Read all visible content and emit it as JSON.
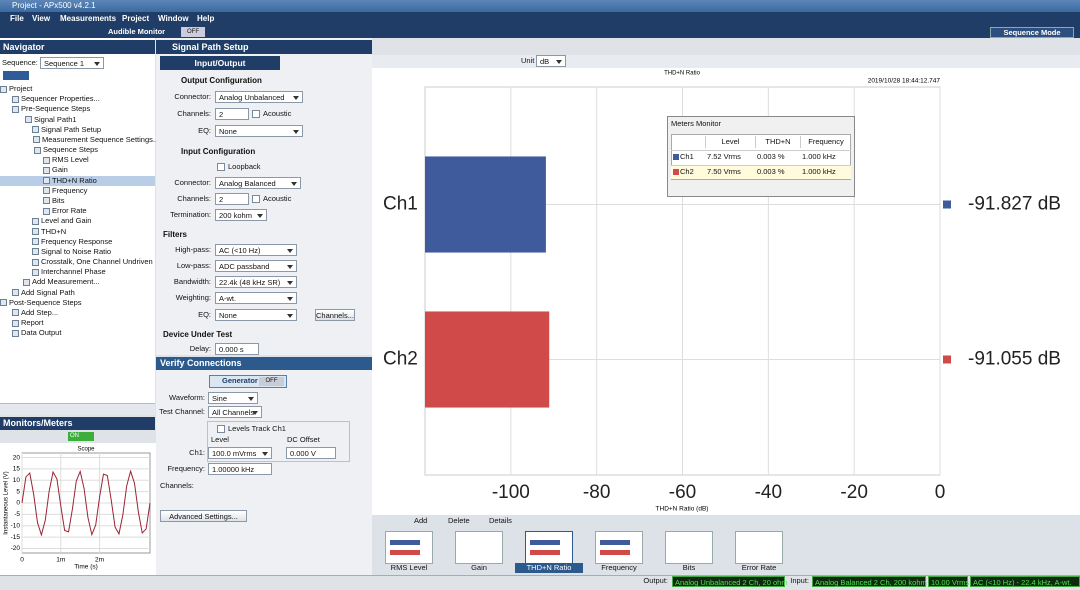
{
  "window": {
    "title": "Project - APx500 v4.2.1",
    "mode": "Sequence Mode"
  },
  "menu": [
    "File",
    "View",
    "Measurements",
    "Project",
    "Window",
    "Help"
  ],
  "toolbar": {
    "audible_monitor": "Audible Monitor",
    "state": "OFF"
  },
  "navigator": {
    "title": "Navigator",
    "sequence_label": "Sequence:",
    "sequence": "Sequence 1",
    "tree": [
      "Project",
      "Sequencer Properties...",
      "Pre-Sequence Steps",
      "Signal Path1",
      "Signal Path Setup",
      "Measurement Sequence Settings...",
      "Sequence Steps",
      "RMS Level",
      "Gain",
      "THD+N Ratio",
      "Frequency",
      "Bits",
      "Error Rate",
      "Level and Gain",
      "THD+N",
      "Frequency Response",
      "Signal to Noise Ratio",
      "Crosstalk, One Channel Undriven",
      "Interchannel Phase",
      "Add Measurement...",
      "Add Signal Path",
      "Post-Sequence Steps",
      "Add Step...",
      "Report",
      "Data Output"
    ]
  },
  "monitors": {
    "title": "Monitors/Meters",
    "state": "ON"
  },
  "signal_path": {
    "title": "Signal Path Setup",
    "tab": "Input/Output",
    "output": {
      "title": "Output Configuration",
      "connector_label": "Connector:",
      "connector": "Analog Unbalanced",
      "channels_label": "Channels:",
      "channels": "2",
      "acoustic": "Acoustic",
      "eq_label": "EQ:",
      "eq": "None"
    },
    "input": {
      "title": "Input Configuration",
      "loopback": "Loopback",
      "connector_label": "Connector:",
      "connector": "Analog Balanced",
      "channels_label": "Channels:",
      "channels": "2",
      "acoustic": "Acoustic",
      "termination_label": "Termination:",
      "termination": "200 kohm"
    },
    "filters": {
      "title": "Filters",
      "highpass_label": "High-pass:",
      "highpass": "AC (<10 Hz)",
      "lowpass_label": "Low-pass:",
      "lowpass": "ADC passband",
      "bandwidth_label": "Bandwidth:",
      "bandwidth": "22.4k (48 kHz SR)",
      "weighting_label": "Weighting:",
      "weighting": "A-wt.",
      "eq_label": "EQ:",
      "eq": "None",
      "channels_button": "Channels..."
    },
    "dut": {
      "title": "Device Under Test",
      "delay_label": "Delay:",
      "delay": "0.000 s"
    }
  },
  "verify": {
    "title": "Verify Connections",
    "generator": "Generator",
    "generator_state": "OFF",
    "waveform_label": "Waveform:",
    "waveform": "Sine",
    "test_channel_label": "Test Channel:",
    "test_channel": "All Channels",
    "levels_track": "Levels Track Ch1",
    "level_header": "Level",
    "dc_offset_header": "DC Offset",
    "ch1_label": "Ch1:",
    "ch1_level": "100.0 mVrms",
    "ch1_dc_offset": "0.000 V",
    "frequency_label": "Frequency:",
    "frequency": "1.00000 kHz",
    "channels_label": "Channels:",
    "advanced": "Advanced Settings..."
  },
  "graph_toolbar": {
    "unit_label": "Unit",
    "unit": "dB"
  },
  "meters_monitor": {
    "title": "Meters Monitor",
    "headers": [
      "Level",
      "THD+N",
      "Frequency"
    ],
    "rows": [
      [
        "Ch1",
        "7.52 Vrms",
        "0.003 %",
        "1.000 kHz"
      ],
      [
        "Ch2",
        "7.50 Vrms",
        "0.003 %",
        "1.000 kHz"
      ]
    ]
  },
  "measurements_bar": {
    "add": "Add",
    "delete": "Delete",
    "details": "Details",
    "tabs": [
      "RMS Level",
      "Gain",
      "THD+N Ratio",
      "Frequency",
      "Bits",
      "Error Rate"
    ]
  },
  "status": {
    "output_label": "Output:",
    "output": "Analog Unbalanced 2 Ch, 20 ohm",
    "input_label": "Input:",
    "input": "Analog Balanced 2 Ch, 200 kohm",
    "level": "10.00 Vrms",
    "filter": "AC (<10 Hz) - 22.4 kHz, A-wt."
  },
  "chart_data": [
    {
      "type": "bar",
      "orientation": "horizontal",
      "title": "THD+N Ratio",
      "timestamp": "2019/10/28 18:44:12.747",
      "xlabel": "THD+N Ratio (dB)",
      "categories": [
        "Ch1",
        "Ch2"
      ],
      "values": [
        -91.827,
        -91.055
      ],
      "value_labels": [
        "-91.827 dB",
        "-91.055 dB"
      ],
      "colors": [
        "#3f5b9b",
        "#d04a4a"
      ],
      "xlim": [
        -120,
        0
      ],
      "xticks": [
        -100,
        -80,
        -60,
        -40,
        -20,
        0
      ],
      "grid": true
    },
    {
      "type": "line",
      "title": "Scope",
      "xlabel": "Time (s)",
      "ylabel": "Instantaneous Level (V)",
      "color": "#9b2335",
      "x": [
        0,
        0.0001,
        0.0002,
        0.0003,
        0.0004,
        0.0005,
        0.0006,
        0.0007,
        0.0008,
        0.0009,
        0.001,
        0.0011,
        0.0012,
        0.0013,
        0.0014,
        0.0015,
        0.0016,
        0.0017,
        0.0018,
        0.0019,
        0.002,
        0.0021,
        0.0022,
        0.0023,
        0.0024,
        0.0025,
        0.0026,
        0.0027,
        0.0028,
        0.0029,
        0.003,
        0.0031,
        0.0032,
        0.0033
      ],
      "values": [
        0,
        11.4,
        13.2,
        3.9,
        -8.7,
        -14.0,
        -7.6,
        5.2,
        13.6,
        10.6,
        -1.3,
        -12.1,
        -12.7,
        -2.6,
        9.7,
        13.9,
        6.4,
        -6.4,
        -13.9,
        -9.7,
        2.6,
        12.7,
        12.1,
        1.3,
        -10.6,
        -13.6,
        -5.2,
        7.6,
        14.0,
        8.7,
        -3.9,
        -13.2,
        -11.4,
        0
      ],
      "xlim": [
        0,
        0.0033
      ],
      "ylim": [
        -22,
        22
      ],
      "xticks": [
        0,
        {
          "value": 0.001,
          "label": "1m"
        },
        {
          "value": 0.002,
          "label": "2m"
        }
      ],
      "yticks": [
        20,
        15,
        10,
        5,
        0,
        -5,
        -10,
        -15,
        -20
      ],
      "grid": true
    }
  ]
}
